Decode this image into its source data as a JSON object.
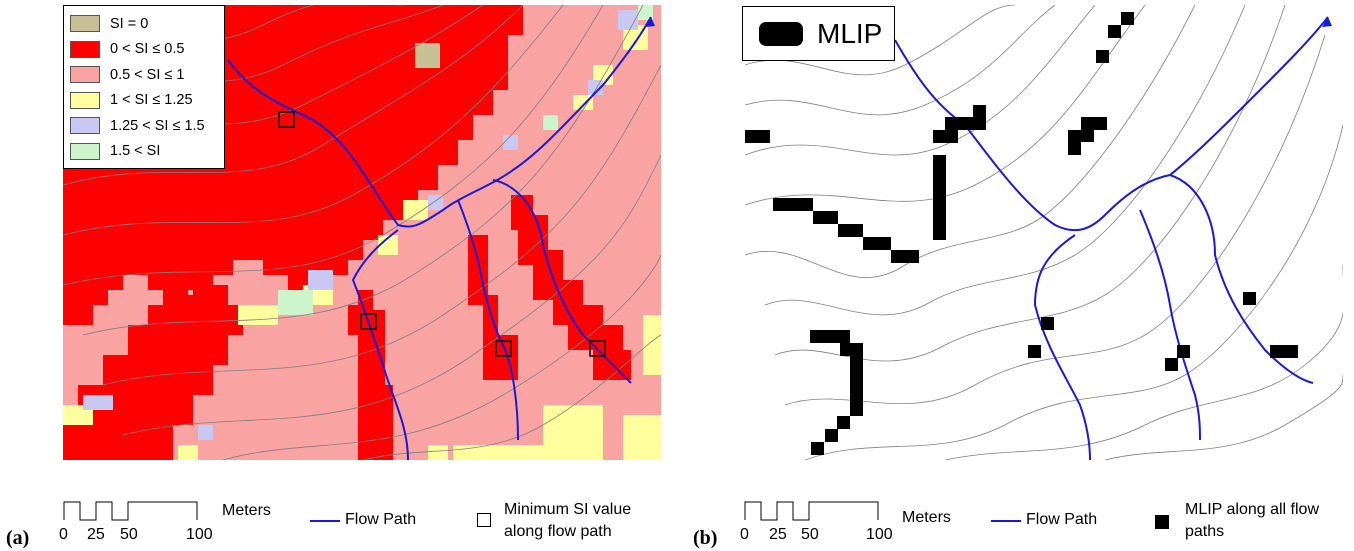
{
  "panel_a": {
    "label": "(a)",
    "legend": [
      {
        "label": "SI = 0",
        "color": "#c8c196"
      },
      {
        "label": "0 < SI ≤ 0.5",
        "color": "#ff0000"
      },
      {
        "label": "0.5 < SI ≤ 1",
        "color": "#f9a3a3"
      },
      {
        "label": "1 < SI ≤ 1.25",
        "color": "#ffff9e"
      },
      {
        "label": "1.25 < SI ≤ 1.5",
        "color": "#c8c8f2"
      },
      {
        "label": "1.5 < SI",
        "color": "#ccf5cc"
      }
    ],
    "scale": {
      "ticks": [
        "0",
        "25",
        "50",
        "100"
      ],
      "unit": "Meters"
    },
    "flow_path_label": "Flow Path",
    "marker_label_1": "Minimum SI value",
    "marker_label_2": "along flow path"
  },
  "panel_b": {
    "label": "(b)",
    "legend_title": "MLIP",
    "scale": {
      "ticks": [
        "0",
        "25",
        "50",
        "100"
      ],
      "unit": "Meters"
    },
    "flow_path_label": "Flow Path",
    "marker_label_1": "MLIP along all flow",
    "marker_label_2": "paths"
  },
  "colors": {
    "flow_path": "#1a1ad6",
    "contour": "#7f7f7f",
    "mlip": "#000000"
  }
}
